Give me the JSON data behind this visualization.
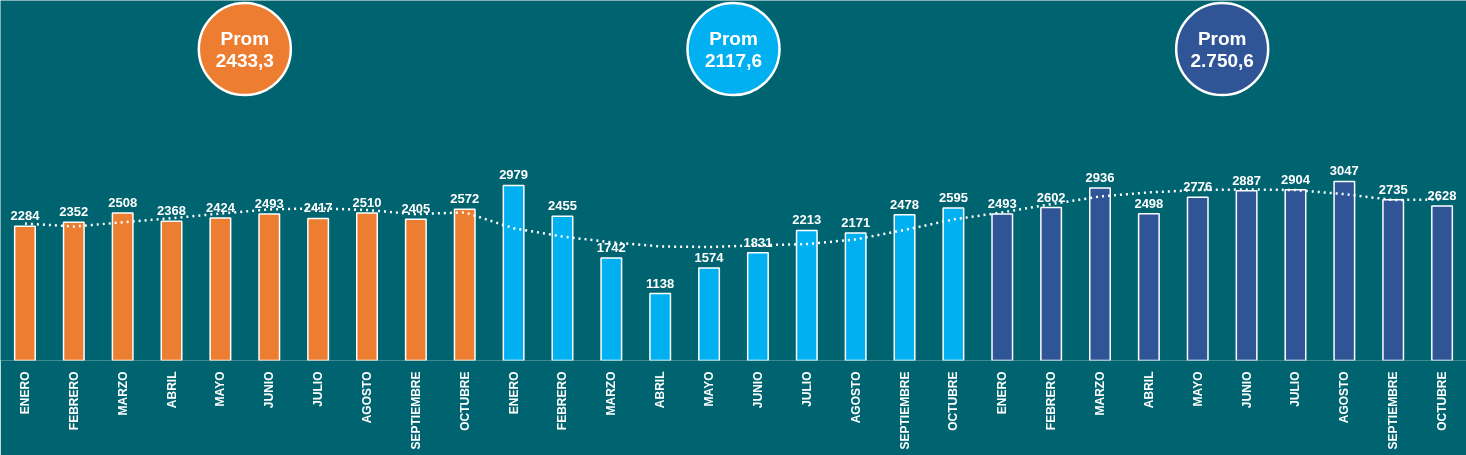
{
  "chart_data": {
    "type": "bar",
    "categories": [
      "ENERO",
      "FEBRERO",
      "MARZO",
      "ABRIL",
      "MAYO",
      "JUNIO",
      "JULIO",
      "AGOSTO",
      "SEPTIEMBRE",
      "OCTUBRE",
      "ENERO",
      "FEBRERO",
      "MARZO",
      "ABRIL",
      "MAYO",
      "JUNIO",
      "JULIO",
      "AGOSTO",
      "SEPTIEMBRE",
      "OCTUBRE",
      "ENERO",
      "FEBRERO",
      "MARZO",
      "ABRIL",
      "MAYO",
      "JUNIO",
      "JULIO",
      "AGOSTO",
      "SEPTIEMBRE",
      "OCTUBRE"
    ],
    "series": [
      {
        "values": [
          2284,
          2352,
          2508,
          2368,
          2424,
          2493,
          2417,
          2510,
          2405,
          2572,
          2979,
          2455,
          1742,
          1138,
          1574,
          1831,
          2213,
          2171,
          2478,
          2595,
          2493,
          2602,
          2936,
          2498,
          2776,
          2887,
          2904,
          3047,
          2735,
          2628
        ],
        "value_labels": [
          "2284",
          "2352",
          "2508",
          "2368",
          "2424",
          "2493",
          "2417",
          "2510",
          "2405",
          "2572",
          "2979",
          "2455",
          "1742",
          "1138",
          "1574",
          "1831",
          "2213",
          "2171",
          "2478",
          "2595",
          "2493",
          "2602",
          "2936",
          "2498",
          "2776",
          "2887",
          "2904",
          "3047",
          "2735",
          "2628"
        ],
        "colors": [
          "#ed7d31",
          "#ed7d31",
          "#ed7d31",
          "#ed7d31",
          "#ed7d31",
          "#ed7d31",
          "#ed7d31",
          "#ed7d31",
          "#ed7d31",
          "#ed7d31",
          "#00b0f0",
          "#00b0f0",
          "#00b0f0",
          "#00b0f0",
          "#00b0f0",
          "#00b0f0",
          "#00b0f0",
          "#00b0f0",
          "#00b0f0",
          "#00b0f0",
          "#2f5597",
          "#2f5597",
          "#2f5597",
          "#2f5597",
          "#2f5597",
          "#2f5597",
          "#2f5597",
          "#2f5597",
          "#2f5597",
          "#2f5597"
        ]
      },
      {
        "type": "line",
        "color": "#ffffff",
        "line_style": "dotted",
        "values": [
          2330,
          2280,
          2350,
          2420,
          2500,
          2570,
          2590,
          2560,
          2490,
          2520,
          2250,
          2110,
          2010,
          1940,
          1930,
          1960,
          1980,
          2060,
          2220,
          2400,
          2520,
          2660,
          2790,
          2860,
          2900,
          2910,
          2900,
          2830,
          2730,
          2740
        ]
      }
    ],
    "annotations": [
      "Prom\n2433,3",
      "Prom\n2117,6",
      "Prom\n2.750,6"
    ],
    "grid": false
  }
}
